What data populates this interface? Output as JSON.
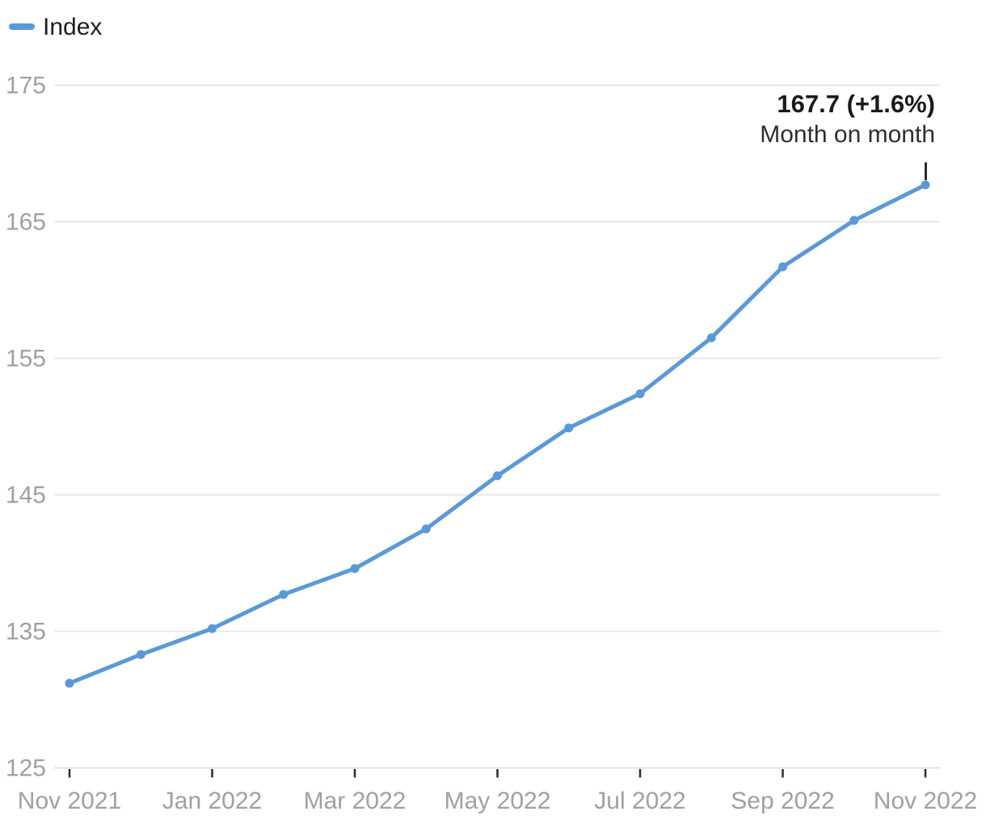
{
  "legend": {
    "series_label": "Index"
  },
  "annotation": {
    "headline": "167.7 (+1.6%)",
    "subtext": "Month on month"
  },
  "colors": {
    "series": "#5b99d6",
    "grid": "#e8e8e8",
    "axis_line": "#e0e0e0",
    "tick": "#2b2b2b",
    "axis_label": "#a0a0a0",
    "annotation_headline": "#1a1a1a",
    "annotation_subtext": "#2e2e2e"
  },
  "chart_data": {
    "type": "line",
    "title": "",
    "xlabel": "",
    "ylabel": "",
    "categories": [
      "Nov 2021",
      "Dec 2021",
      "Jan 2022",
      "Feb 2022",
      "Mar 2022",
      "Apr 2022",
      "May 2022",
      "Jun 2022",
      "Jul 2022",
      "Aug 2022",
      "Sep 2022",
      "Oct 2022",
      "Nov 2022"
    ],
    "series": [
      {
        "name": "Index",
        "values": [
          131.2,
          133.3,
          135.2,
          137.7,
          139.6,
          142.5,
          146.4,
          149.9,
          152.4,
          156.5,
          161.7,
          165.1,
          167.7
        ]
      }
    ],
    "y_ticks": [
      125,
      135,
      145,
      155,
      165,
      175
    ],
    "ylim": [
      125,
      175
    ],
    "x_ticks": [
      {
        "index": 0,
        "label": "Nov 2021"
      },
      {
        "index": 2,
        "label": "Jan 2022"
      },
      {
        "index": 4,
        "label": "Mar 2022"
      },
      {
        "index": 6,
        "label": "May 2022"
      },
      {
        "index": 8,
        "label": "Jul 2022"
      },
      {
        "index": 10,
        "label": "Sep 2022"
      },
      {
        "index": 12,
        "label": "Nov 2022"
      }
    ],
    "grid": "horizontal",
    "legend_position": "top-left",
    "annotated_point": {
      "category": "Nov 2022",
      "value": 167.7,
      "change_pct": "+1.6%"
    }
  }
}
